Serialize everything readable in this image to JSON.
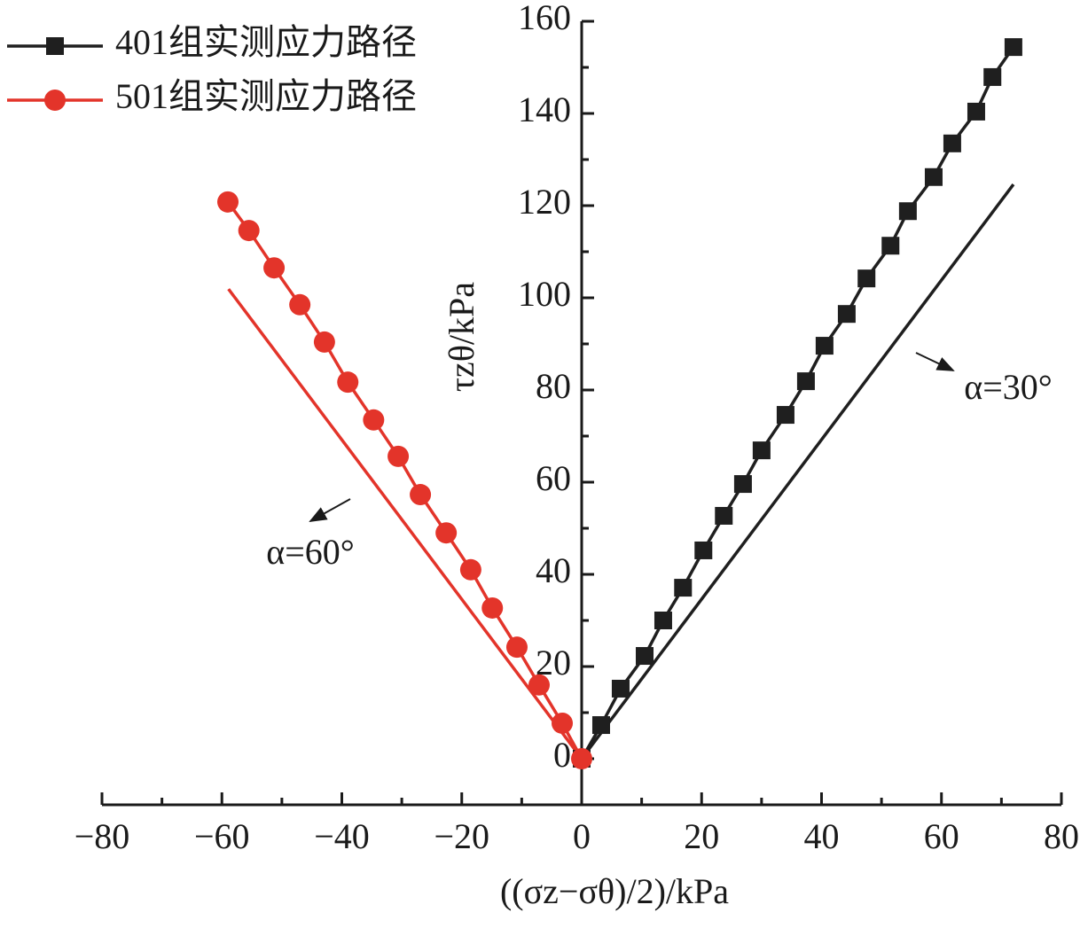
{
  "chart_data": {
    "type": "line",
    "x_label": "((σz−σθ)/2)/kPa",
    "y_label": "τzθ/kPa",
    "xlim": [
      -80,
      80
    ],
    "ylim": [
      -10,
      160
    ],
    "xticks": [
      {
        "value": -80,
        "label": "−80"
      },
      {
        "value": -60,
        "label": "−60"
      },
      {
        "value": -40,
        "label": "−40"
      },
      {
        "value": -20,
        "label": "−20"
      },
      0,
      20,
      40,
      60,
      80
    ],
    "yticks": [
      0,
      20,
      40,
      60,
      80,
      100,
      120,
      140,
      160
    ],
    "xminorticks": [
      -70,
      -50,
      -30,
      -10,
      10,
      30,
      50,
      70
    ],
    "yminorticks": [
      10,
      30,
      50,
      70,
      90,
      110,
      130,
      150
    ],
    "legend": "upper left",
    "series": [
      {
        "name": "401组实测应力路径",
        "color": "#1f1f1f",
        "marker": "square",
        "x": [
          0,
          3.25,
          6.5,
          10.5,
          13.6,
          16.9,
          20.3,
          23.7,
          26.9,
          30,
          34,
          37.4,
          40.5,
          44.2,
          47.5,
          51.5,
          54.4,
          58.7,
          61.8,
          65.8,
          68.5,
          72
        ],
        "values": [
          0,
          7.3,
          15.2,
          22.3,
          30,
          37.1,
          45.2,
          52.7,
          59.6,
          66.9,
          74.6,
          81.9,
          89.6,
          96.5,
          104.2,
          111.3,
          118.8,
          126.2,
          133.5,
          140.4,
          147.9,
          154.4
        ]
      },
      {
        "name": "501组实测应力路径",
        "color": "#e3342a",
        "marker": "circle",
        "x": [
          0,
          -3.25,
          -7.1,
          -10.8,
          -14.9,
          -18.5,
          -22.6,
          -26.9,
          -30.6,
          -34.7,
          -39,
          -42.9,
          -47,
          -51.3,
          -55.5,
          -59
        ],
        "values": [
          0,
          7.7,
          16,
          24.2,
          32.7,
          41,
          49,
          57.3,
          65.6,
          73.5,
          81.7,
          90.4,
          98.5,
          106.5,
          114.6,
          120.8
        ]
      }
    ],
    "reference_lines": [
      {
        "color": "#1f1f1f",
        "x": [
          0,
          72
        ],
        "values": [
          0,
          124.6
        ]
      },
      {
        "color": "#e3342a",
        "x": [
          0,
          -58.9
        ],
        "values": [
          0,
          101.9
        ]
      }
    ],
    "annotations": [
      {
        "text": "α=30°"
      },
      {
        "text": "α=60°"
      }
    ]
  }
}
